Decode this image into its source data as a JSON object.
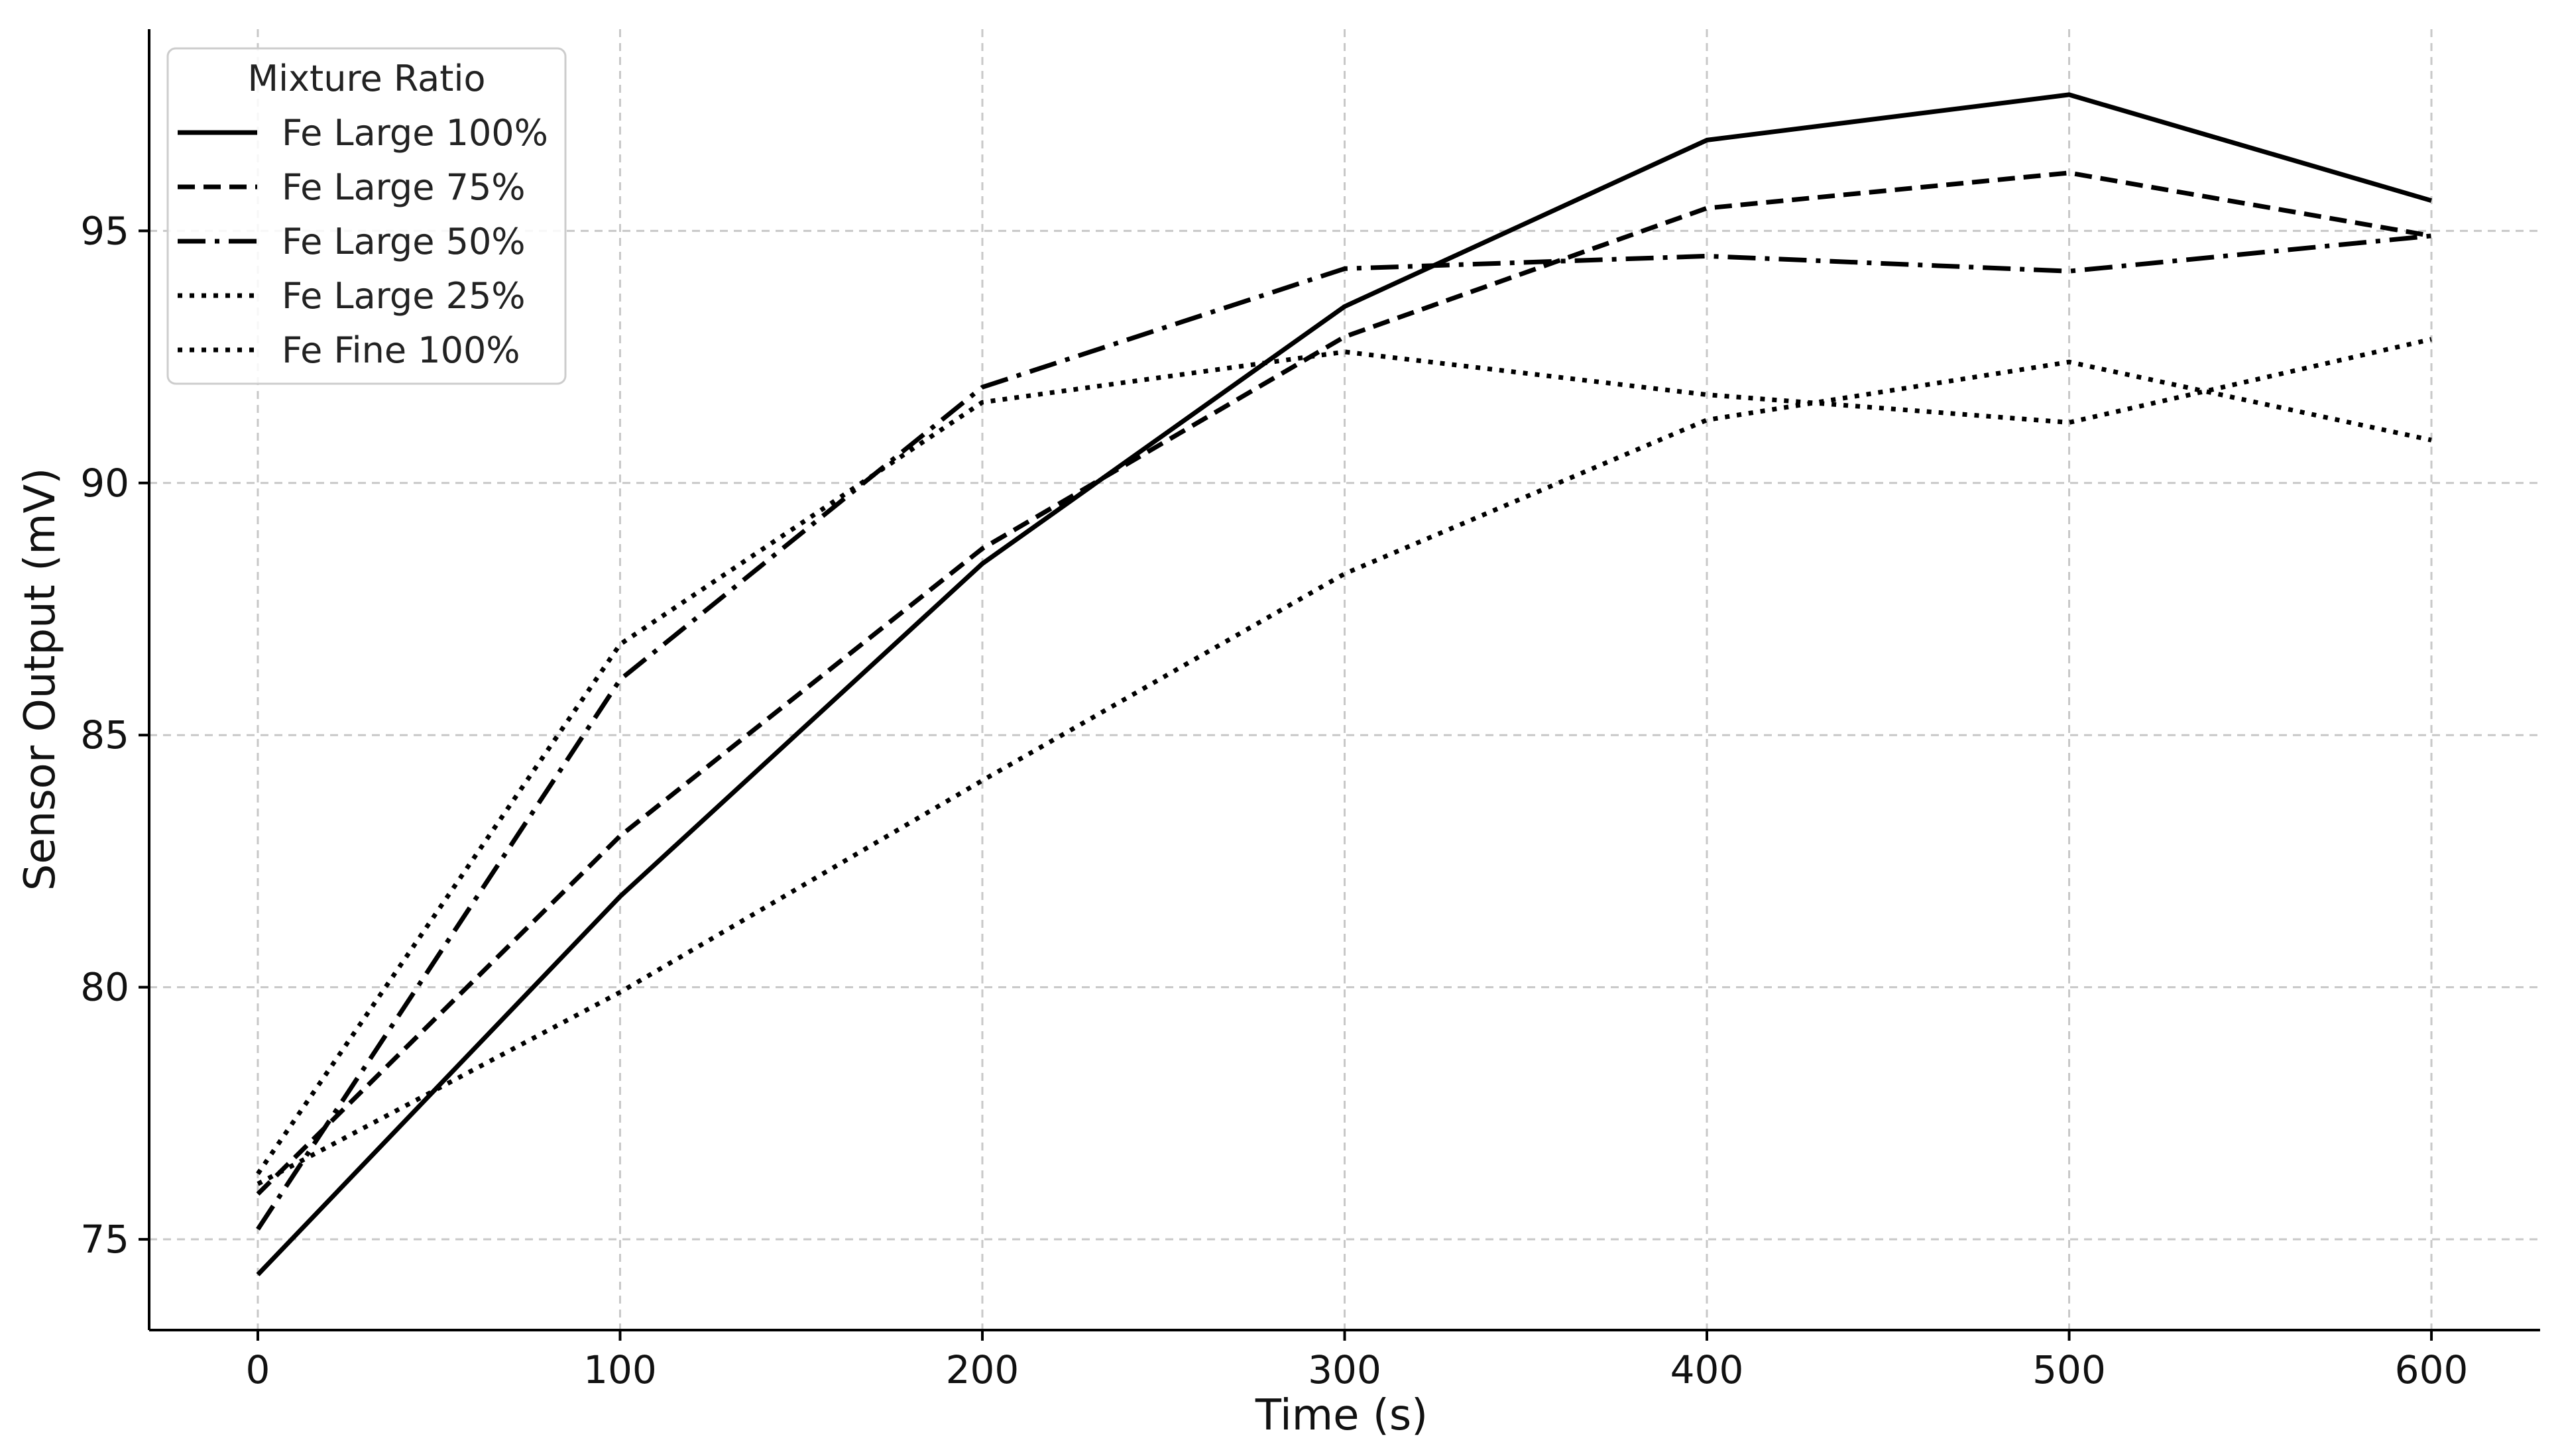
{
  "chart_data": {
    "type": "line",
    "xlabel": "Time (s)",
    "ylabel": "Sensor Output (mV)",
    "x": [
      0,
      100,
      200,
      300,
      400,
      500,
      600
    ],
    "xlim": [
      -30,
      630
    ],
    "ylim": [
      73.2,
      99.0
    ],
    "xticks": [
      0,
      100,
      200,
      300,
      400,
      500,
      600
    ],
    "yticks": [
      75,
      80,
      85,
      90,
      95
    ],
    "grid": true,
    "legend": {
      "title": "Mixture Ratio",
      "position": "top-left"
    },
    "series": [
      {
        "name": "Fe Large 100%",
        "style": "solid",
        "values": [
          74.3,
          81.8,
          88.4,
          93.5,
          96.8,
          97.7,
          95.6
        ]
      },
      {
        "name": "Fe Large 75%",
        "style": "dashed",
        "values": [
          75.9,
          83.0,
          88.7,
          92.9,
          95.45,
          96.15,
          94.9
        ]
      },
      {
        "name": "Fe Large 50%",
        "style": "dashdot",
        "values": [
          75.2,
          86.1,
          91.9,
          94.25,
          94.5,
          94.2,
          94.9
        ]
      },
      {
        "name": "Fe Large 25%",
        "style": "dotted",
        "values": [
          76.3,
          86.8,
          91.6,
          92.6,
          91.75,
          91.2,
          92.85
        ]
      },
      {
        "name": "Fe Fine 100%",
        "style": "dotted",
        "values": [
          76.1,
          79.9,
          84.1,
          88.2,
          91.25,
          92.4,
          90.85
        ]
      }
    ]
  }
}
